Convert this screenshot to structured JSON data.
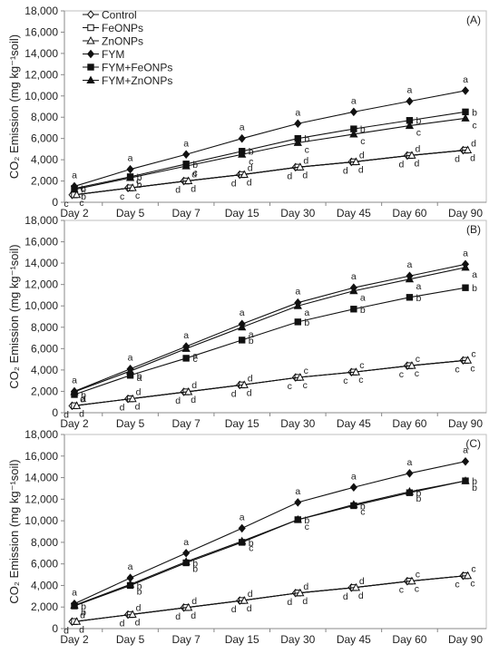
{
  "chart_data": [
    {
      "type": "line",
      "panel_label": "(A)",
      "ylabel": "CO₂ Emission (mg kg⁻¹soil)",
      "ylim": [
        0,
        18000
      ],
      "yticks": [
        0,
        2000,
        4000,
        6000,
        8000,
        10000,
        12000,
        14000,
        16000,
        18000
      ],
      "ytick_labels": [
        "0",
        "2,000",
        "4,000",
        "6,000",
        "8,000",
        "10,000",
        "12,000",
        "14,000",
        "16,000",
        "18,000"
      ],
      "legend": {
        "placement": "top-left"
      },
      "categories": [
        "Day 2",
        "Day 5",
        "Day 7",
        "Day 15",
        "Day 30",
        "Day 45",
        "Day 60",
        "Day 90"
      ],
      "series": [
        {
          "name": "Control",
          "marker": "diamond-open",
          "values": [
            700,
            1350,
            2000,
            2600,
            3300,
            3800,
            4400,
            4900
          ],
          "letters": [
            "c",
            "c",
            "d",
            "d",
            "d",
            "d",
            "d",
            "d"
          ]
        },
        {
          "name": "FeONPs",
          "marker": "square-open",
          "values": [
            700,
            1350,
            2000,
            2600,
            3300,
            3800,
            4400,
            4900
          ],
          "letters": [
            "c",
            "c",
            "d",
            "d",
            "d",
            "d",
            "d",
            "d"
          ]
        },
        {
          "name": "ZnONPs",
          "marker": "triangle-open",
          "values": [
            700,
            1350,
            2000,
            2600,
            3300,
            3800,
            4400,
            4900
          ],
          "letters": [
            "c",
            "c",
            "d",
            "d",
            "d",
            "d",
            "d",
            "d"
          ]
        },
        {
          "name": "FYM",
          "marker": "diamond-filled",
          "values": [
            1500,
            3100,
            4500,
            6000,
            7400,
            8500,
            9500,
            10500
          ],
          "letters": [
            "a",
            "a",
            "a",
            "a",
            "a",
            "a",
            "a",
            "a"
          ]
        },
        {
          "name": "FYM+FeONPs",
          "marker": "square-filled",
          "values": [
            1300,
            2400,
            3600,
            4800,
            6000,
            6900,
            7700,
            8500
          ],
          "letters": [
            "b",
            "b",
            "b",
            "b",
            "b",
            "b",
            "b",
            "b"
          ]
        },
        {
          "name": "FYM+ZnONPs",
          "marker": "triangle-filled",
          "values": [
            1200,
            2300,
            3400,
            4500,
            5600,
            6400,
            7200,
            7900
          ],
          "letters": [
            "b",
            "b",
            "c",
            "c",
            "c",
            "c",
            "c",
            "c"
          ]
        }
      ]
    },
    {
      "type": "line",
      "panel_label": "(B)",
      "ylabel": "CO₂ Emission (mg kg⁻¹soil)",
      "ylim": [
        0,
        18000
      ],
      "yticks": [
        0,
        2000,
        4000,
        6000,
        8000,
        10000,
        12000,
        14000,
        16000,
        18000
      ],
      "ytick_labels": [
        "0",
        "2,000",
        "4,000",
        "6,000",
        "8,000",
        "10,000",
        "12,000",
        "14,000",
        "16,000",
        "18,000"
      ],
      "categories": [
        "Day 2",
        "Day 5",
        "Day 7",
        "Day 15",
        "Day 30",
        "Day 45",
        "Day 60",
        "Day 90"
      ],
      "series": [
        {
          "name": "Control",
          "marker": "diamond-open",
          "values": [
            650,
            1300,
            1950,
            2600,
            3300,
            3800,
            4400,
            4900
          ],
          "letters": [
            "d",
            "d",
            "d",
            "d",
            "c",
            "c",
            "c",
            "c"
          ]
        },
        {
          "name": "FeONPs",
          "marker": "square-open",
          "values": [
            650,
            1300,
            1950,
            2600,
            3300,
            3800,
            4400,
            4900
          ],
          "letters": [
            "d",
            "d",
            "d",
            "d",
            "c",
            "c",
            "c",
            "c"
          ]
        },
        {
          "name": "ZnONPs",
          "marker": "triangle-open",
          "values": [
            650,
            1300,
            1950,
            2600,
            3300,
            3800,
            4400,
            4900
          ],
          "letters": [
            "d",
            "d",
            "d",
            "d",
            "c",
            "c",
            "c",
            "c"
          ]
        },
        {
          "name": "FYM",
          "marker": "diamond-filled",
          "values": [
            2000,
            4100,
            6200,
            8300,
            10300,
            11700,
            12800,
            13900
          ],
          "letters": [
            "a",
            "a",
            "a",
            "a",
            "a",
            "a",
            "a",
            "a"
          ]
        },
        {
          "name": "FYM+FeONPs",
          "marker": "square-filled",
          "values": [
            1700,
            3500,
            5100,
            6800,
            8500,
            9700,
            10800,
            11700
          ],
          "letters": [
            "b",
            "b",
            "c",
            "b",
            "b",
            "b",
            "b",
            "b"
          ]
        },
        {
          "name": "FYM+ZnONPs",
          "marker": "triangle-filled",
          "values": [
            1950,
            3900,
            6000,
            8000,
            10000,
            11400,
            12500,
            13600
          ],
          "letters": [
            "a",
            "a",
            "a",
            "a",
            "a",
            "a",
            "a",
            "a"
          ]
        }
      ]
    },
    {
      "type": "line",
      "panel_label": "(C)",
      "ylabel": "CO₂ Emission (mg kg⁻¹soil)",
      "ylim": [
        0,
        18000
      ],
      "yticks": [
        0,
        2000,
        4000,
        6000,
        8000,
        10000,
        12000,
        14000,
        16000,
        18000
      ],
      "ytick_labels": [
        "0",
        "2,000",
        "4,000",
        "6,000",
        "8,000",
        "10,000",
        "12,000",
        "14,000",
        "16,000",
        "18,000"
      ],
      "categories": [
        "Day 2",
        "Day 5",
        "Day 7",
        "Day 15",
        "Day 30",
        "Day 45",
        "Day 60",
        "Day 90"
      ],
      "series": [
        {
          "name": "Control",
          "marker": "diamond-open",
          "values": [
            650,
            1300,
            1950,
            2600,
            3300,
            3800,
            4400,
            4900
          ],
          "letters": [
            "d",
            "d",
            "d",
            "d",
            "d",
            "d",
            "c",
            "c"
          ]
        },
        {
          "name": "FeONPs",
          "marker": "square-open",
          "values": [
            650,
            1300,
            1950,
            2600,
            3300,
            3800,
            4400,
            4900
          ],
          "letters": [
            "d",
            "d",
            "d",
            "d",
            "d",
            "d",
            "c",
            "c"
          ]
        },
        {
          "name": "ZnONPs",
          "marker": "triangle-open",
          "values": [
            650,
            1300,
            1950,
            2600,
            3300,
            3800,
            4400,
            4900
          ],
          "letters": [
            "d",
            "d",
            "d",
            "d",
            "d",
            "d",
            "c",
            "c"
          ]
        },
        {
          "name": "FYM",
          "marker": "diamond-filled",
          "values": [
            2300,
            4700,
            7000,
            9300,
            11700,
            13100,
            14400,
            15500
          ],
          "letters": [
            "a",
            "a",
            "a",
            "a",
            "a",
            "a",
            "a",
            "a"
          ]
        },
        {
          "name": "FYM+FeONPs",
          "marker": "square-filled",
          "values": [
            2100,
            4000,
            6100,
            8000,
            10100,
            11400,
            12600,
            13700
          ],
          "letters": [
            "b",
            "b",
            "b",
            "b",
            "b",
            "b",
            "b",
            "b"
          ]
        },
        {
          "name": "FYM+ZnONPs",
          "marker": "triangle-filled",
          "values": [
            2150,
            4100,
            6200,
            8100,
            10100,
            11500,
            12700,
            13700
          ],
          "letters": [
            "b",
            "b",
            "b",
            "c",
            "c",
            "c",
            "b",
            "b"
          ]
        }
      ]
    }
  ]
}
